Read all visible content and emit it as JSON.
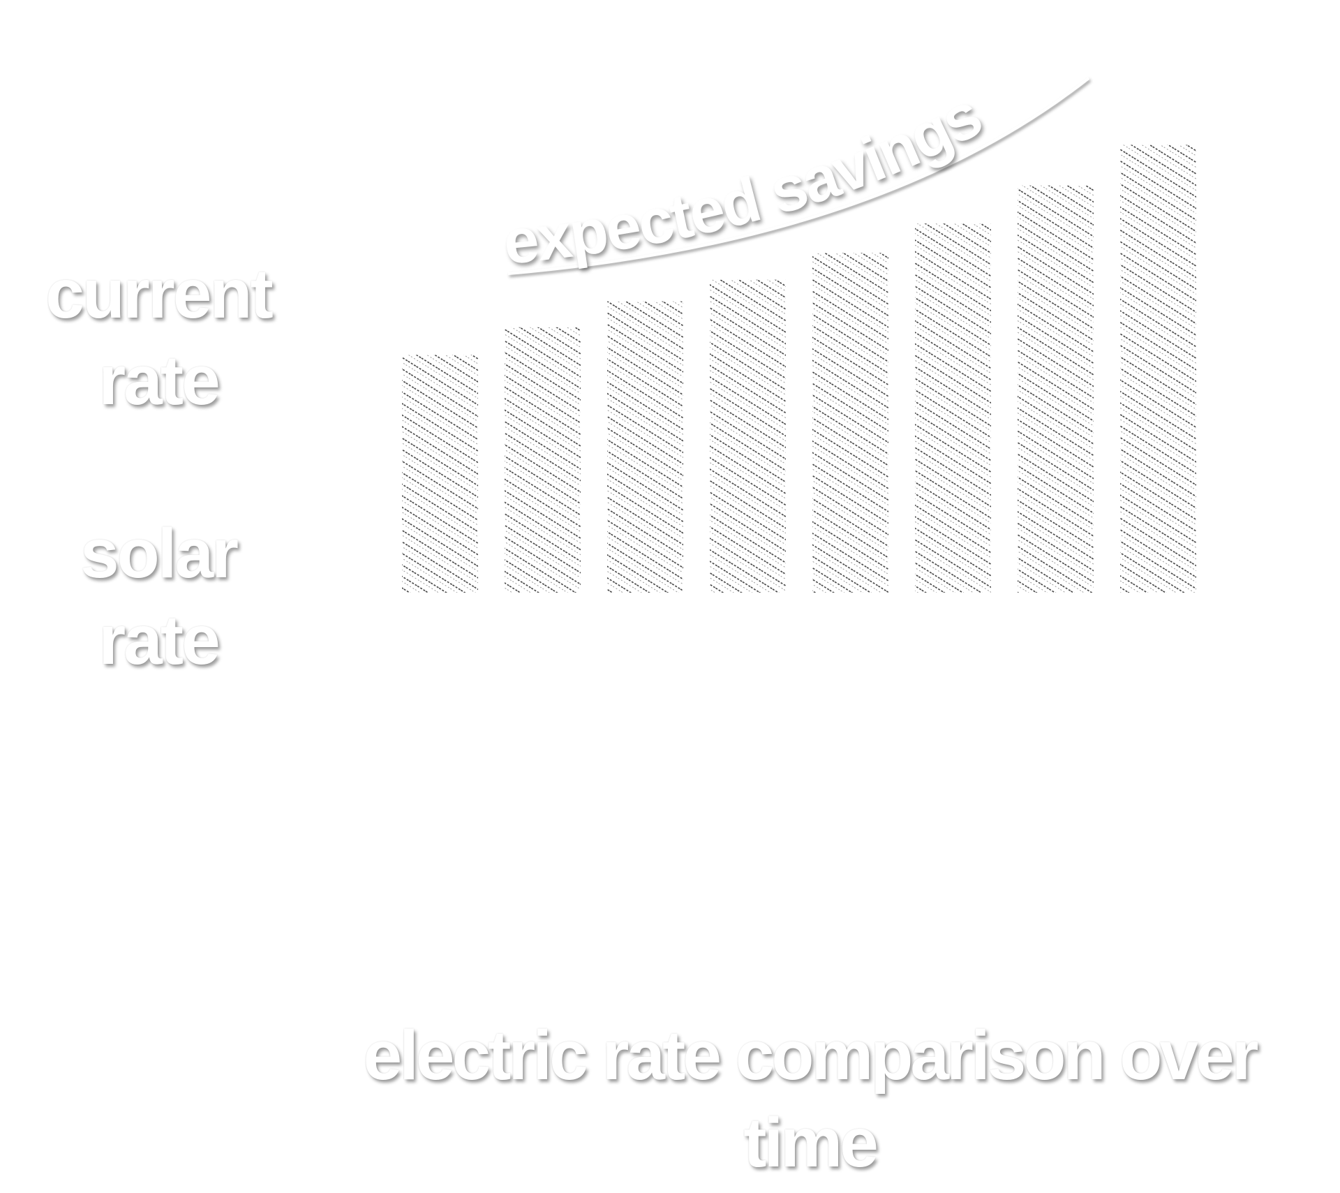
{
  "chart_data": {
    "type": "bar",
    "title": "electric rate comparison over time",
    "annotations": [
      "current rate",
      "solar rate",
      "expected savings"
    ],
    "categories": [
      null,
      null,
      null,
      null,
      null,
      null,
      null,
      null
    ],
    "values": [
      275,
      307,
      337,
      362,
      393,
      427,
      471,
      518
    ],
    "ylim": [
      0,
      600
    ]
  }
}
